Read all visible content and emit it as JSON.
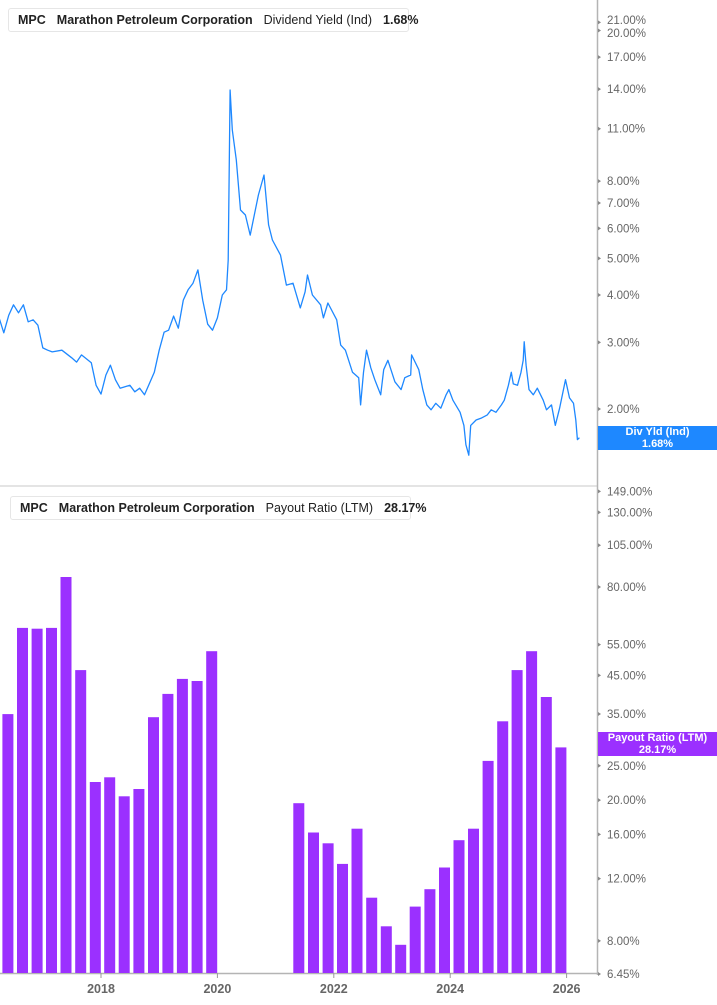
{
  "colors": {
    "yield_line": "#1e88ff",
    "payout_bars": "#9b30ff",
    "axis": "#b4b4b4"
  },
  "top_legend": {
    "ticker": "MPC",
    "company": "Marathon Petroleum Corporation",
    "metric": "Dividend Yield (Ind)",
    "value": "1.68%"
  },
  "bottom_legend": {
    "ticker": "MPC",
    "company": "Marathon Petroleum Corporation",
    "metric": "Payout Ratio (LTM)",
    "value": "28.17%"
  },
  "top_flag": {
    "label": "Div Yld (Ind)",
    "value": "1.68%"
  },
  "bottom_flag": {
    "label": "Payout Ratio (LTM)",
    "value": "28.17%"
  },
  "chart_data": [
    {
      "type": "line",
      "title": "Dividend Yield (Ind)",
      "yscale": "log",
      "grid": false,
      "legend": "top-left",
      "y_ticks": [
        "21.00%",
        "20.00%",
        "17.00%",
        "14.00%",
        "11.00%",
        "8.00%",
        "7.00%",
        "6.00%",
        "5.00%",
        "4.00%",
        "3.00%",
        "2.00%"
      ],
      "y_tick_values": [
        21,
        20,
        17,
        14,
        11,
        8,
        7,
        6,
        5,
        4,
        3,
        2
      ],
      "series": [
        {
          "name": "Dividend Yield (Ind)",
          "points": [
            [
              "2016-04-01",
              3.48
            ],
            [
              "2016-05-01",
              3.18
            ],
            [
              "2016-06-01",
              3.54
            ],
            [
              "2016-07-01",
              3.77
            ],
            [
              "2016-08-01",
              3.59
            ],
            [
              "2016-09-01",
              3.77
            ],
            [
              "2016-10-01",
              3.4
            ],
            [
              "2016-11-01",
              3.44
            ],
            [
              "2016-12-01",
              3.33
            ],
            [
              "2017-01-01",
              2.9
            ],
            [
              "2017-02-01",
              2.86
            ],
            [
              "2017-03-01",
              2.83
            ],
            [
              "2017-05-01",
              2.86
            ],
            [
              "2017-07-01",
              2.73
            ],
            [
              "2017-08-01",
              2.66
            ],
            [
              "2017-09-01",
              2.78
            ],
            [
              "2017-11-01",
              2.65
            ],
            [
              "2017-12-01",
              2.31
            ],
            [
              "2018-01-01",
              2.19
            ],
            [
              "2018-02-01",
              2.46
            ],
            [
              "2018-03-01",
              2.61
            ],
            [
              "2018-04-01",
              2.39
            ],
            [
              "2018-05-01",
              2.27
            ],
            [
              "2018-07-01",
              2.31
            ],
            [
              "2018-08-01",
              2.22
            ],
            [
              "2018-09-01",
              2.27
            ],
            [
              "2018-10-01",
              2.18
            ],
            [
              "2018-12-01",
              2.5
            ],
            [
              "2019-01-01",
              2.86
            ],
            [
              "2019-02-01",
              3.19
            ],
            [
              "2019-03-01",
              3.23
            ],
            [
              "2019-04-01",
              3.52
            ],
            [
              "2019-05-01",
              3.27
            ],
            [
              "2019-06-01",
              3.88
            ],
            [
              "2019-07-01",
              4.13
            ],
            [
              "2019-08-01",
              4.3
            ],
            [
              "2019-09-01",
              4.66
            ],
            [
              "2019-10-01",
              3.88
            ],
            [
              "2019-11-01",
              3.35
            ],
            [
              "2019-12-01",
              3.23
            ],
            [
              "2020-01-01",
              3.48
            ],
            [
              "2020-02-01",
              4.0
            ],
            [
              "2020-02-27",
              4.13
            ],
            [
              "2020-03-09",
              4.95
            ],
            [
              "2020-03-21",
              13.92
            ],
            [
              "2020-04-04",
              10.92
            ],
            [
              "2020-04-29",
              9.1
            ],
            [
              "2020-05-25",
              6.71
            ],
            [
              "2020-06-25",
              6.51
            ],
            [
              "2020-07-25",
              5.76
            ],
            [
              "2020-08-20",
              6.51
            ],
            [
              "2020-09-15",
              7.35
            ],
            [
              "2020-10-20",
              8.3
            ],
            [
              "2020-11-18",
              6.13
            ],
            [
              "2020-12-12",
              5.59
            ],
            [
              "2021-02-01",
              5.1
            ],
            [
              "2021-03-10",
              4.25
            ],
            [
              "2021-04-20",
              4.3
            ],
            [
              "2021-06-05",
              3.7
            ],
            [
              "2021-07-05",
              4.08
            ],
            [
              "2021-07-20",
              4.52
            ],
            [
              "2021-08-20",
              4.0
            ],
            [
              "2021-10-10",
              3.77
            ],
            [
              "2021-10-28",
              3.48
            ],
            [
              "2021-11-25",
              3.81
            ],
            [
              "2022-01-19",
              3.44
            ],
            [
              "2022-02-13",
              2.95
            ],
            [
              "2022-03-15",
              2.86
            ],
            [
              "2022-04-28",
              2.5
            ],
            [
              "2022-06-06",
              2.42
            ],
            [
              "2022-06-18",
              2.05
            ],
            [
              "2022-07-06",
              2.5
            ],
            [
              "2022-07-25",
              2.86
            ],
            [
              "2022-08-21",
              2.57
            ],
            [
              "2022-09-15",
              2.39
            ],
            [
              "2022-10-22",
              2.18
            ],
            [
              "2022-11-10",
              2.54
            ],
            [
              "2022-12-06",
              2.69
            ],
            [
              "2023-01-19",
              2.36
            ],
            [
              "2023-02-27",
              2.25
            ],
            [
              "2023-03-22",
              2.42
            ],
            [
              "2023-04-28",
              2.46
            ],
            [
              "2023-05-04",
              2.78
            ],
            [
              "2023-06-18",
              2.54
            ],
            [
              "2023-07-13",
              2.25
            ],
            [
              "2023-08-07",
              2.05
            ],
            [
              "2023-09-03",
              1.99
            ],
            [
              "2023-10-03",
              2.07
            ],
            [
              "2023-11-03",
              2.01
            ],
            [
              "2023-12-06",
              2.18
            ],
            [
              "2023-12-24",
              2.25
            ],
            [
              "2024-01-18",
              2.11
            ],
            [
              "2024-03-03",
              1.96
            ],
            [
              "2024-03-27",
              1.81
            ],
            [
              "2024-04-09",
              1.61
            ],
            [
              "2024-04-27",
              1.51
            ],
            [
              "2024-05-09",
              1.81
            ],
            [
              "2024-06-12",
              1.87
            ],
            [
              "2024-07-12",
              1.89
            ],
            [
              "2024-08-21",
              1.93
            ],
            [
              "2024-09-15",
              1.99
            ],
            [
              "2024-10-15",
              1.96
            ],
            [
              "2024-11-18",
              2.05
            ],
            [
              "2024-12-06",
              2.11
            ],
            [
              "2025-01-01",
              2.31
            ],
            [
              "2025-01-19",
              2.5
            ],
            [
              "2025-02-01",
              2.33
            ],
            [
              "2025-02-27",
              2.31
            ],
            [
              "2025-03-21",
              2.5
            ],
            [
              "2025-04-04",
              2.69
            ],
            [
              "2025-04-10",
              3.01
            ],
            [
              "2025-04-22",
              2.61
            ],
            [
              "2025-05-10",
              2.25
            ],
            [
              "2025-06-06",
              2.18
            ],
            [
              "2025-07-01",
              2.27
            ],
            [
              "2025-08-07",
              2.11
            ],
            [
              "2025-08-28",
              1.99
            ],
            [
              "2025-09-28",
              2.05
            ],
            [
              "2025-10-22",
              1.81
            ],
            [
              "2025-11-18",
              2.01
            ],
            [
              "2025-12-25",
              2.39
            ],
            [
              "2026-01-19",
              2.14
            ],
            [
              "2026-02-13",
              2.07
            ],
            [
              "2026-02-28",
              1.87
            ],
            [
              "2026-03-10",
              1.66
            ],
            [
              "2026-03-22",
              1.68
            ]
          ]
        }
      ]
    },
    {
      "type": "bar",
      "title": "Payout Ratio (LTM)",
      "yscale": "log",
      "grid": false,
      "legend": "top-left",
      "y_ticks": [
        "149.00%",
        "130.00%",
        "105.00%",
        "80.00%",
        "55.00%",
        "45.00%",
        "35.00%",
        "25.00%",
        "20.00%",
        "16.00%",
        "12.00%",
        "8.00%",
        "6.45%"
      ],
      "y_tick_values": [
        149,
        130,
        105,
        80,
        55,
        45,
        35,
        25,
        20,
        16,
        12,
        8,
        6.45
      ],
      "x_ticks": [
        "2018",
        "2020",
        "2022",
        "2024",
        "2026"
      ],
      "series": [
        {
          "name": "Payout Ratio (LTM)",
          "points": [
            [
              "2016-03-31",
              32.8
            ],
            [
              "2016-06-30",
              35.0
            ],
            [
              "2016-09-30",
              61.3
            ],
            [
              "2016-12-31",
              61.0
            ],
            [
              "2017-03-31",
              61.3
            ],
            [
              "2017-06-30",
              85.4
            ],
            [
              "2017-09-30",
              46.6
            ],
            [
              "2017-12-31",
              22.5
            ],
            [
              "2018-03-31",
              23.2
            ],
            [
              "2018-06-30",
              20.5
            ],
            [
              "2018-09-30",
              21.5
            ],
            [
              "2018-12-31",
              34.3
            ],
            [
              "2019-03-31",
              39.9
            ],
            [
              "2019-06-30",
              44.0
            ],
            [
              "2019-09-30",
              43.4
            ],
            [
              "2019-12-31",
              52.7
            ],
            [
              "2021-06-30",
              19.6
            ],
            [
              "2021-09-30",
              16.2
            ],
            [
              "2021-12-31",
              15.1
            ],
            [
              "2022-03-31",
              13.2
            ],
            [
              "2022-06-30",
              16.6
            ],
            [
              "2022-09-30",
              10.6
            ],
            [
              "2022-12-31",
              8.8
            ],
            [
              "2023-03-31",
              7.8
            ],
            [
              "2023-06-30",
              10.0
            ],
            [
              "2023-09-30",
              11.2
            ],
            [
              "2023-12-31",
              12.9
            ],
            [
              "2024-03-31",
              15.4
            ],
            [
              "2024-06-30",
              16.6
            ],
            [
              "2024-09-30",
              25.8
            ],
            [
              "2024-12-31",
              33.4
            ],
            [
              "2025-03-31",
              46.6
            ],
            [
              "2025-06-30",
              52.7
            ],
            [
              "2025-09-30",
              39.1
            ],
            [
              "2025-12-31",
              28.17
            ]
          ]
        }
      ]
    }
  ]
}
